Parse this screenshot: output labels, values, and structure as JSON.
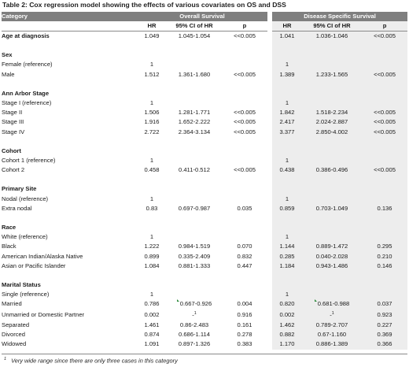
{
  "title": "Table 2: Cox regression model showing the effects of various covariates on OS and DSS",
  "header": {
    "category": "Category",
    "overall": "Overall Survival",
    "disease": "Disease Specific Survival",
    "hr": "HR",
    "ci": "95% CI of HR",
    "p": "p"
  },
  "rows": [
    {
      "type": "data",
      "label": "Age at diagnosis",
      "bold": true,
      "os_hr": "1.049",
      "os_ci": "1.045-1.054",
      "os_p": "<<0.005",
      "ds_hr": "1.041",
      "ds_ci": "1.036-1.046",
      "ds_p": "<<0.005"
    },
    {
      "type": "blank"
    },
    {
      "type": "group",
      "label": "Sex"
    },
    {
      "type": "data",
      "label": "Female (reference)",
      "os_hr": "1",
      "os_ci": "",
      "os_p": "",
      "ds_hr": "1",
      "ds_ci": "",
      "ds_p": ""
    },
    {
      "type": "data",
      "label": "Male",
      "os_hr": "1.512",
      "os_ci": "1.361-1.680",
      "os_p": "<<0.005",
      "ds_hr": "1.389",
      "ds_ci": "1.233-1.565",
      "ds_p": "<<0.005"
    },
    {
      "type": "blank"
    },
    {
      "type": "group",
      "label": "Ann Arbor Stage"
    },
    {
      "type": "data",
      "label": "Stage I (reference)",
      "os_hr": "1",
      "os_ci": "",
      "os_p": "",
      "ds_hr": "1",
      "ds_ci": "",
      "ds_p": ""
    },
    {
      "type": "data",
      "label": "Stage II",
      "os_hr": "1.506",
      "os_ci": "1.281-1.771",
      "os_p": "<<0.005",
      "ds_hr": "1.842",
      "ds_ci": "1.518-2.234",
      "ds_p": "<<0.005"
    },
    {
      "type": "data",
      "label": "Stage III",
      "os_hr": "1.916",
      "os_ci": "1.652-2.222",
      "os_p": "<<0.005",
      "ds_hr": "2.417",
      "ds_ci": "2.024-2.887",
      "ds_p": "<<0.005"
    },
    {
      "type": "data",
      "label": "Stage IV",
      "os_hr": "2.722",
      "os_ci": "2.364-3.134",
      "os_p": "<<0.005",
      "ds_hr": "3.377",
      "ds_ci": "2.850-4.002",
      "ds_p": "<<0.005"
    },
    {
      "type": "blank"
    },
    {
      "type": "group",
      "label": "Cohort"
    },
    {
      "type": "data",
      "label": "Cohort 1 (reference)",
      "os_hr": "1",
      "os_ci": "",
      "os_p": "",
      "ds_hr": "1",
      "ds_ci": "",
      "ds_p": ""
    },
    {
      "type": "data",
      "label": "Cohort 2",
      "os_hr": "0.458",
      "os_ci": "0.411-0.512",
      "os_p": "<<0.005",
      "ds_hr": "0.438",
      "ds_ci": "0.386-0.496",
      "ds_p": "<<0.005"
    },
    {
      "type": "blank"
    },
    {
      "type": "group",
      "label": "Primary Site"
    },
    {
      "type": "data",
      "label": "Nodal (reference)",
      "os_hr": "1",
      "os_ci": "",
      "os_p": "",
      "ds_hr": "1",
      "ds_ci": "",
      "ds_p": ""
    },
    {
      "type": "data",
      "label": "Extra nodal",
      "os_hr": "0.83",
      "os_ci": "0.697-0.987",
      "os_p": "0.035",
      "ds_hr": "0.859",
      "ds_ci": "0.703-1.049",
      "ds_p": "0.136"
    },
    {
      "type": "blank"
    },
    {
      "type": "group",
      "label": "Race"
    },
    {
      "type": "data",
      "label": "White (reference)",
      "os_hr": "1",
      "os_ci": "",
      "os_p": "",
      "ds_hr": "1",
      "ds_ci": "",
      "ds_p": ""
    },
    {
      "type": "data",
      "label": "Black",
      "os_hr": "1.222",
      "os_ci": "0.984-1.519",
      "os_p": "0.070",
      "ds_hr": "1.144",
      "ds_ci": "0.889-1.472",
      "ds_p": "0.295"
    },
    {
      "type": "data",
      "label": "American Indian/Alaska Native",
      "os_hr": "0.899",
      "os_ci": "0.335-2.409",
      "os_p": "0.832",
      "ds_hr": "0.285",
      "ds_ci": "0.040-2.028",
      "ds_p": "0.210"
    },
    {
      "type": "data",
      "label": "Asian or Pacific Islander",
      "os_hr": "1.084",
      "os_ci": "0.881-1.333",
      "os_p": "0.447",
      "ds_hr": "1.184",
      "ds_ci": "0.943-1.486",
      "ds_p": "0.146"
    },
    {
      "type": "blank"
    },
    {
      "type": "group",
      "label": "Marital Status"
    },
    {
      "type": "data",
      "label": "Single (reference)",
      "os_hr": "1",
      "os_ci": "",
      "os_p": "",
      "ds_hr": "1",
      "ds_ci": "",
      "ds_p": ""
    },
    {
      "type": "data",
      "label": "Married",
      "os_hr": "0.786",
      "os_ci": "0.667-0.926",
      "os_p": "0.004",
      "ds_hr": "0.820",
      "ds_ci": "0.681-0.988",
      "ds_p": "0.037",
      "marker": true
    },
    {
      "type": "data",
      "label": "Unmarried or Domestic Partner",
      "os_hr": "0.002",
      "os_ci": "-",
      "os_ci_sup": "1",
      "os_p": "0.916",
      "ds_hr": "0.002",
      "ds_ci": "-",
      "ds_ci_sup": "1",
      "ds_p": "0.923"
    },
    {
      "type": "data",
      "label": "Separated",
      "os_hr": "1.461",
      "os_ci": "0.86-2.483",
      "os_p": "0.161",
      "ds_hr": "1.462",
      "ds_ci": "0.789-2.707",
      "ds_p": "0.227"
    },
    {
      "type": "data",
      "label": "Divorced",
      "os_hr": "0.874",
      "os_ci": "0.686-1.114",
      "os_p": "0.278",
      "ds_hr": "0.882",
      "ds_ci": "0.67-1.160",
      "ds_p": "0.369"
    },
    {
      "type": "data",
      "label": "Widowed",
      "os_hr": "1.091",
      "os_ci": "0.897-1.326",
      "os_p": "0.383",
      "ds_hr": "1.170",
      "ds_ci": "0.886-1.389",
      "ds_p": "0.366"
    }
  ],
  "footnote": {
    "mark": "1",
    "text": "Very wide range since there are only three cases in this category"
  }
}
